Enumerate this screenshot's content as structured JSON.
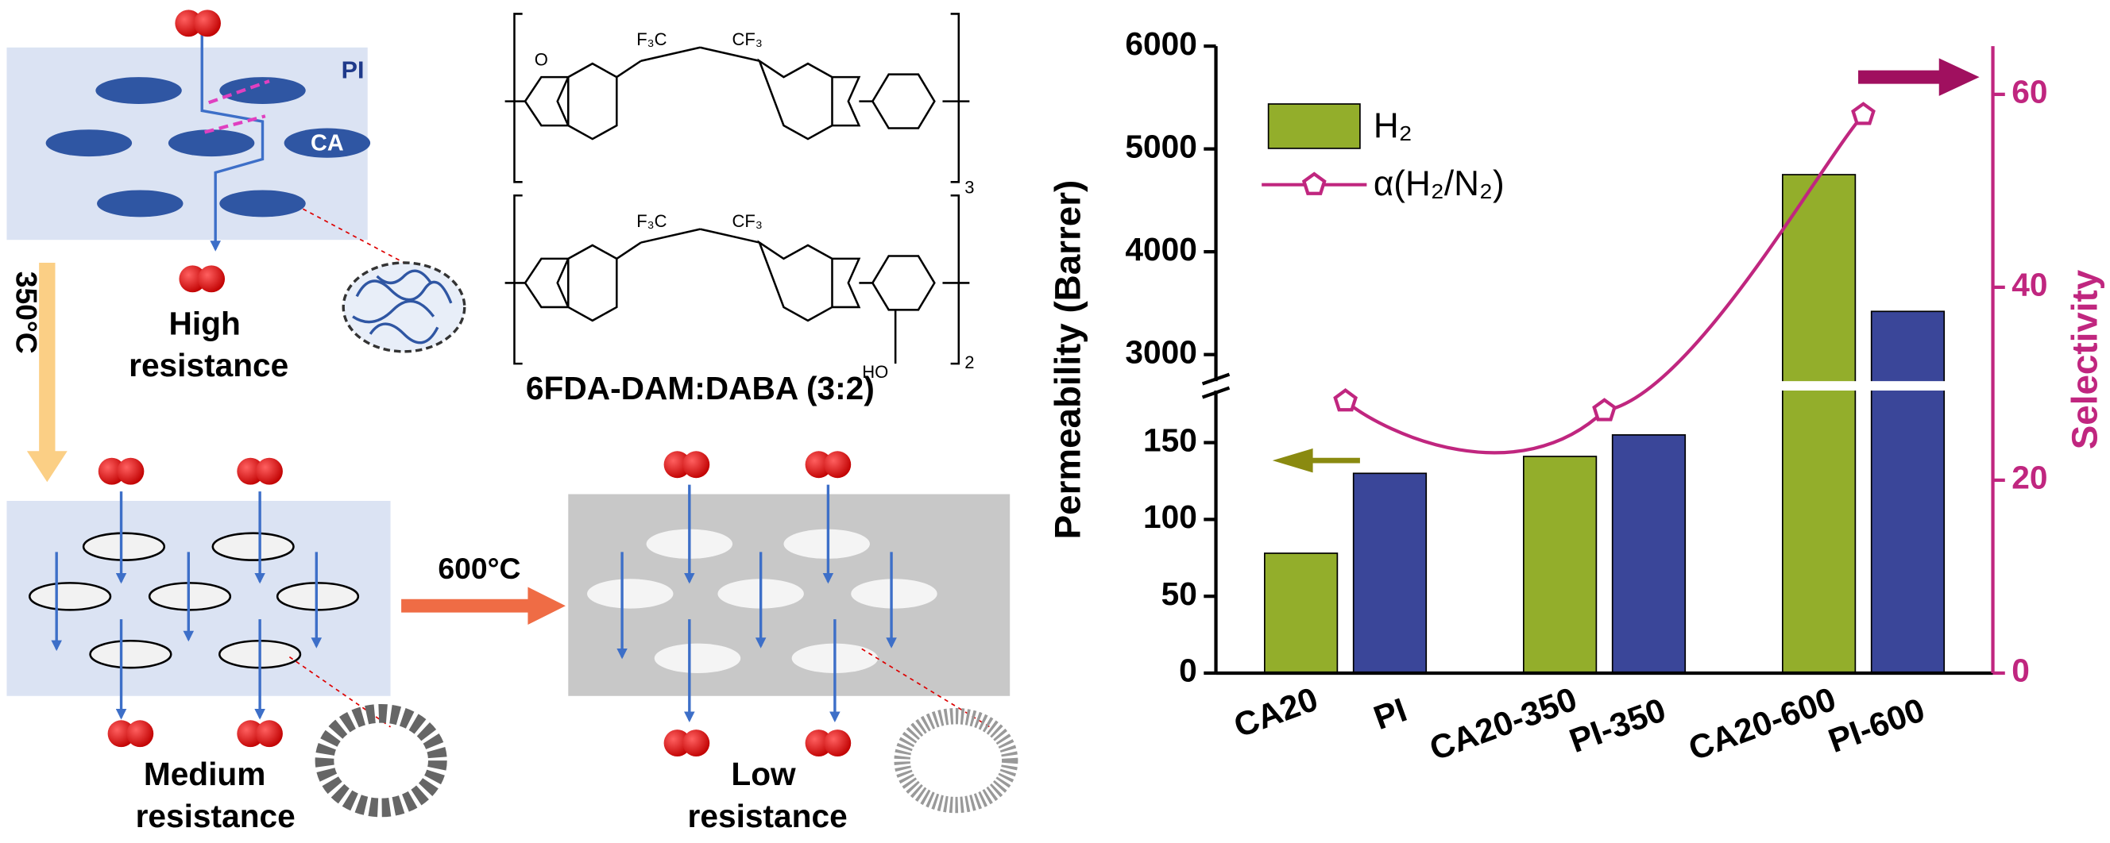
{
  "figure": {
    "pi_label": "PI",
    "ca_label": "CA",
    "high": [
      "High",
      "resistance"
    ],
    "step1": "350°C",
    "medium": [
      "Medium",
      "resistance"
    ],
    "step2": "600°C",
    "low": [
      "Low",
      "resistance"
    ],
    "polymer": "6FDA-DAM:DABA (3:2)",
    "structure_labels": [
      "F₃C",
      "CF₃",
      "O",
      "HO",
      "3",
      "2"
    ]
  },
  "chart_data": {
    "type": "bar",
    "categories": [
      "CA20",
      "PI",
      "CA20-350",
      "PI-350",
      "CA20-600",
      "PI-600"
    ],
    "series": [
      {
        "name": "H₂",
        "color": "#93ae2b",
        "bar_colors": [
          "#93ae2b",
          "#3a4699",
          "#93ae2b",
          "#3a4699",
          "#93ae2b",
          "#3a4699"
        ],
        "values": [
          78,
          130,
          141,
          155,
          4750,
          3420
        ]
      },
      {
        "name": "α(H₂/N₂)",
        "axis": "y2",
        "color": "#c0267f",
        "marker": "pentagon",
        "x": [
          "CA20",
          "CA20-350",
          "CA20-600"
        ],
        "values": [
          28.2,
          27.2,
          57.9
        ]
      }
    ],
    "ylabel": "Permeability (Barrer)",
    "y2label": "Selectivity",
    "y_segments": [
      {
        "ylim": [
          0,
          190
        ],
        "yticks": [
          0,
          50,
          100,
          150
        ]
      },
      {
        "ylim": [
          2650,
          6000
        ],
        "yticks": [
          3000,
          4000,
          5000,
          6000
        ]
      }
    ],
    "y2lim": [
      0,
      65
    ],
    "y2ticks": [
      0,
      20,
      40,
      60
    ],
    "legend": "upper left"
  }
}
